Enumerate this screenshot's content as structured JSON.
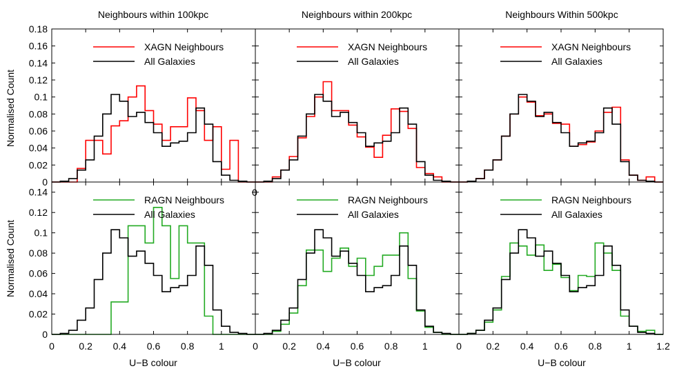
{
  "figure": {
    "col_titles": [
      "Neighbours within 100kpc",
      "Neighbours within 200kpc",
      "Neighbours Within 500kpc"
    ],
    "xlabel": "U−B colour",
    "ylabel": "Normalised Count",
    "stray_tick_label": "0"
  },
  "colors": {
    "xagn": "#ff0000",
    "ragn": "#22aa22",
    "all": "#000000"
  },
  "chart_data": [
    {
      "type": "line",
      "row": 0,
      "col": 0,
      "step": true,
      "title": "Neighbours within 100kpc",
      "ylabel": "Normalised Count",
      "xlim": [
        0,
        1.2
      ],
      "ylim": [
        0,
        0.18
      ],
      "yticks": [
        0,
        0.02,
        0.04,
        0.06,
        0.08,
        0.1,
        0.12,
        0.14,
        0.16,
        0.18
      ],
      "ytick_labels": [
        "0",
        "0.02",
        "0.04",
        "0.06",
        "0.08",
        "0.1",
        "0.12",
        "0.14",
        "0.16",
        "0.18"
      ],
      "legend": {
        "placement": "top-center"
      },
      "series": [
        {
          "name": "XAGN Neighbours",
          "color": "#ff0000",
          "values": [
            0,
            0,
            0,
            0.016,
            0.049,
            0.049,
            0.033,
            0.066,
            0.072,
            0.1,
            0.113,
            0.084,
            0.068,
            0.049,
            0.065,
            0.065,
            0.099,
            0.084,
            0.049,
            0.065,
            0.015,
            0.049,
            0,
            0
          ]
        },
        {
          "name": "All Galaxies",
          "color": "#000000",
          "values": [
            0,
            0.001,
            0.004,
            0.014,
            0.026,
            0.054,
            0.08,
            0.103,
            0.095,
            0.077,
            0.082,
            0.07,
            0.058,
            0.042,
            0.046,
            0.048,
            0.058,
            0.087,
            0.068,
            0.024,
            0.008,
            0.002,
            0.001,
            0
          ]
        }
      ]
    },
    {
      "type": "line",
      "row": 0,
      "col": 1,
      "step": true,
      "title": "Neighbours within 200kpc",
      "xlim": [
        0,
        1.2
      ],
      "ylim": [
        0,
        0.18
      ],
      "legend": {
        "placement": "top-center"
      },
      "series": [
        {
          "name": "XAGN Neighbours",
          "color": "#ff0000",
          "values": [
            0,
            0,
            0.006,
            0.014,
            0.03,
            0.052,
            0.077,
            0.1,
            0.118,
            0.084,
            0.084,
            0.067,
            0.053,
            0.041,
            0.029,
            0.055,
            0.086,
            0.083,
            0.063,
            0.017,
            0.01,
            0.006,
            0,
            0
          ]
        },
        {
          "name": "All Galaxies",
          "color": "#000000",
          "values": [
            0,
            0.001,
            0.004,
            0.014,
            0.026,
            0.054,
            0.08,
            0.103,
            0.095,
            0.077,
            0.082,
            0.07,
            0.058,
            0.042,
            0.046,
            0.048,
            0.058,
            0.087,
            0.068,
            0.024,
            0.008,
            0.002,
            0.001,
            0
          ]
        }
      ]
    },
    {
      "type": "line",
      "row": 0,
      "col": 2,
      "step": true,
      "title": "Neighbours Within 500kpc",
      "xlim": [
        0,
        1.2
      ],
      "ylim": [
        0,
        0.18
      ],
      "legend": {
        "placement": "top-center"
      },
      "series": [
        {
          "name": "XAGN Neighbours",
          "color": "#ff0000",
          "values": [
            0,
            0.001,
            0.004,
            0.014,
            0.026,
            0.054,
            0.08,
            0.1,
            0.094,
            0.078,
            0.08,
            0.069,
            0.068,
            0.042,
            0.044,
            0.047,
            0.06,
            0.082,
            0.088,
            0.026,
            0.008,
            0.002,
            0.006,
            0
          ]
        },
        {
          "name": "All Galaxies",
          "color": "#000000",
          "values": [
            0,
            0.001,
            0.004,
            0.014,
            0.026,
            0.054,
            0.08,
            0.103,
            0.095,
            0.077,
            0.082,
            0.07,
            0.058,
            0.042,
            0.046,
            0.048,
            0.058,
            0.087,
            0.068,
            0.024,
            0.008,
            0.002,
            0.001,
            0
          ]
        }
      ]
    },
    {
      "type": "line",
      "row": 1,
      "col": 0,
      "step": true,
      "title": "",
      "xlabel": "U−B colour",
      "ylabel": "Normalised Count",
      "xlim": [
        0,
        1.2
      ],
      "ylim": [
        0,
        0.15
      ],
      "yticks": [
        0,
        0.02,
        0.04,
        0.06,
        0.08,
        0.1,
        0.12,
        0.14
      ],
      "ytick_labels": [
        "0",
        "0.02",
        "0.04",
        "0.06",
        "0.08",
        "0.1",
        "0.12",
        "0.14"
      ],
      "xticks": [
        0,
        0.2,
        0.4,
        0.6,
        0.8,
        1
      ],
      "xtick_labels": [
        "0",
        "0.2",
        "0.4",
        "0.6",
        "0.8",
        "1"
      ],
      "legend": {
        "placement": "top-center"
      },
      "series": [
        {
          "name": "RAGN Neighbours",
          "color": "#22aa22",
          "values": [
            0,
            0,
            0,
            0,
            0,
            0,
            0,
            0.032,
            0.032,
            0.107,
            0.107,
            0.09,
            0.125,
            0.107,
            0.055,
            0.107,
            0.09,
            0.09,
            0.018,
            0,
            0,
            0,
            0,
            0
          ]
        },
        {
          "name": "All Galaxies",
          "color": "#000000",
          "values": [
            0,
            0.001,
            0.004,
            0.014,
            0.026,
            0.054,
            0.08,
            0.103,
            0.095,
            0.077,
            0.082,
            0.07,
            0.058,
            0.042,
            0.046,
            0.048,
            0.058,
            0.087,
            0.068,
            0.024,
            0.008,
            0.002,
            0.001,
            0
          ]
        }
      ]
    },
    {
      "type": "line",
      "row": 1,
      "col": 1,
      "step": true,
      "title": "",
      "xlabel": "U−B colour",
      "xlim": [
        0,
        1.2
      ],
      "ylim": [
        0,
        0.15
      ],
      "xticks": [
        0,
        0.2,
        0.4,
        0.6,
        0.8,
        1
      ],
      "xtick_labels": [
        "0",
        "0.2",
        "0.4",
        "0.6",
        "0.8",
        "1"
      ],
      "legend": {
        "placement": "top-center"
      },
      "series": [
        {
          "name": "RAGN Neighbours",
          "color": "#22aa22",
          "values": [
            0,
            0,
            0.003,
            0.01,
            0.021,
            0.048,
            0.083,
            0.083,
            0.062,
            0.075,
            0.085,
            0.067,
            0.075,
            0.058,
            0.067,
            0.078,
            0.078,
            0.1,
            0.055,
            0.023,
            0.007,
            0.002,
            0,
            0
          ]
        },
        {
          "name": "All Galaxies",
          "color": "#000000",
          "values": [
            0,
            0.001,
            0.004,
            0.014,
            0.026,
            0.054,
            0.08,
            0.103,
            0.095,
            0.077,
            0.082,
            0.07,
            0.058,
            0.042,
            0.046,
            0.048,
            0.058,
            0.087,
            0.068,
            0.024,
            0.008,
            0.002,
            0.001,
            0
          ]
        }
      ]
    },
    {
      "type": "line",
      "row": 1,
      "col": 2,
      "step": true,
      "title": "",
      "xlabel": "U−B colour",
      "xlim": [
        0,
        1.2
      ],
      "ylim": [
        0,
        0.15
      ],
      "xticks": [
        0,
        0.2,
        0.4,
        0.6,
        0.8,
        1,
        1.2
      ],
      "xtick_labels": [
        "0",
        "0.2",
        "0.4",
        "0.6",
        "0.8",
        "1",
        "1.2"
      ],
      "legend": {
        "placement": "top-center"
      },
      "series": [
        {
          "name": "RAGN Neighbours",
          "color": "#22aa22",
          "values": [
            0,
            0.001,
            0.004,
            0.012,
            0.024,
            0.057,
            0.09,
            0.087,
            0.078,
            0.088,
            0.063,
            0.069,
            0.056,
            0.043,
            0.058,
            0.057,
            0.09,
            0.08,
            0.063,
            0.018,
            0.008,
            0.003,
            0.004,
            0
          ]
        },
        {
          "name": "All Galaxies",
          "color": "#000000",
          "values": [
            0,
            0.001,
            0.004,
            0.014,
            0.026,
            0.054,
            0.08,
            0.103,
            0.095,
            0.077,
            0.082,
            0.07,
            0.058,
            0.042,
            0.046,
            0.048,
            0.058,
            0.087,
            0.068,
            0.024,
            0.008,
            0.002,
            0.001,
            0
          ]
        }
      ]
    }
  ]
}
